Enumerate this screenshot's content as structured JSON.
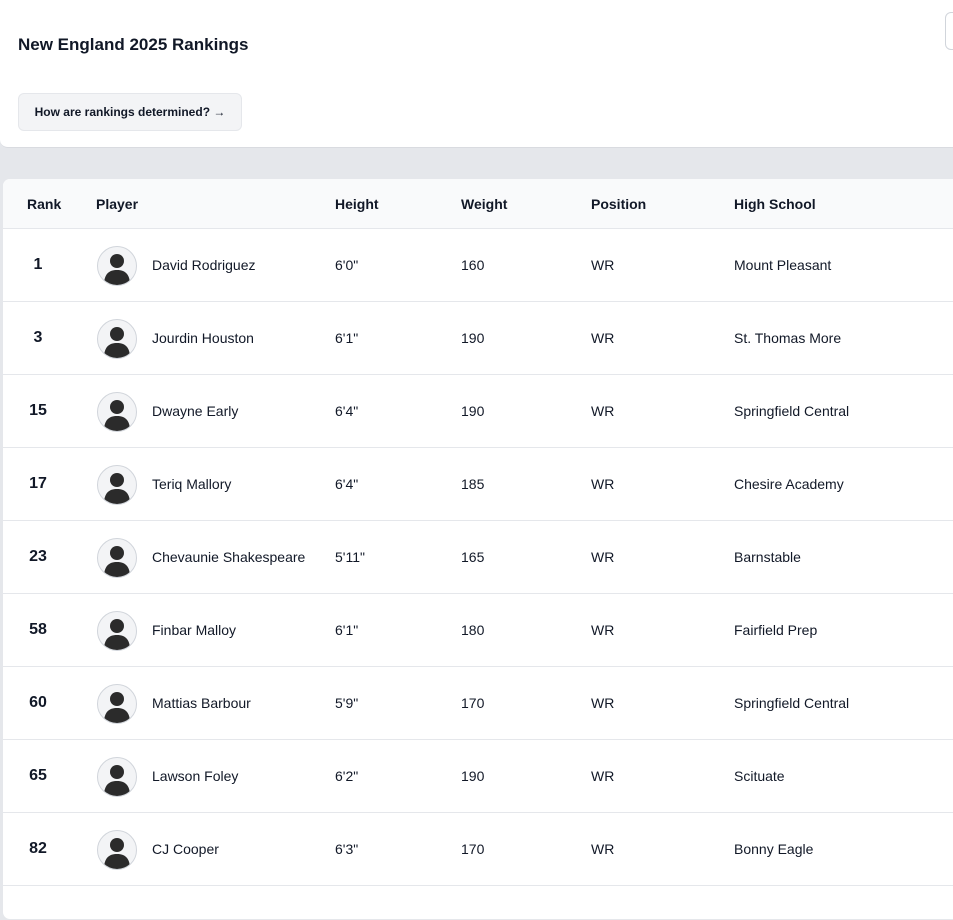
{
  "header": {
    "title": "New England 2025 Rankings",
    "button": "How are rankings determined? →"
  },
  "table": {
    "columns": [
      "Rank",
      "Player",
      "Height",
      "Weight",
      "Position",
      "High School"
    ],
    "rows": [
      [
        1,
        "David Rodriguez",
        "6'0\"",
        160,
        "WR",
        "Mount Pleasant"
      ],
      [
        3,
        "Jourdin Houston",
        "6'1\"",
        190,
        "WR",
        "St. Thomas More"
      ],
      [
        15,
        "Dwayne Early",
        "6'4\"",
        190,
        "WR",
        "Springfield Central"
      ],
      [
        17,
        "Teriq Mallory",
        "6'4\"",
        185,
        "WR",
        "Chesire Academy"
      ],
      [
        23,
        "Chevaunie Shakespeare",
        "5'11\"",
        165,
        "WR",
        "Barnstable"
      ],
      [
        58,
        "Finbar Malloy",
        "6'1\"",
        180,
        "WR",
        "Fairfield Prep"
      ],
      [
        60,
        "Mattias Barbour",
        "5'9\"",
        170,
        "WR",
        "Springfield Central"
      ],
      [
        65,
        "Lawson Foley",
        "6'2\"",
        190,
        "WR",
        "Scituate"
      ],
      [
        82,
        "CJ Cooper",
        "6'3\"",
        170,
        "WR",
        "Bonny Eagle"
      ]
    ]
  }
}
